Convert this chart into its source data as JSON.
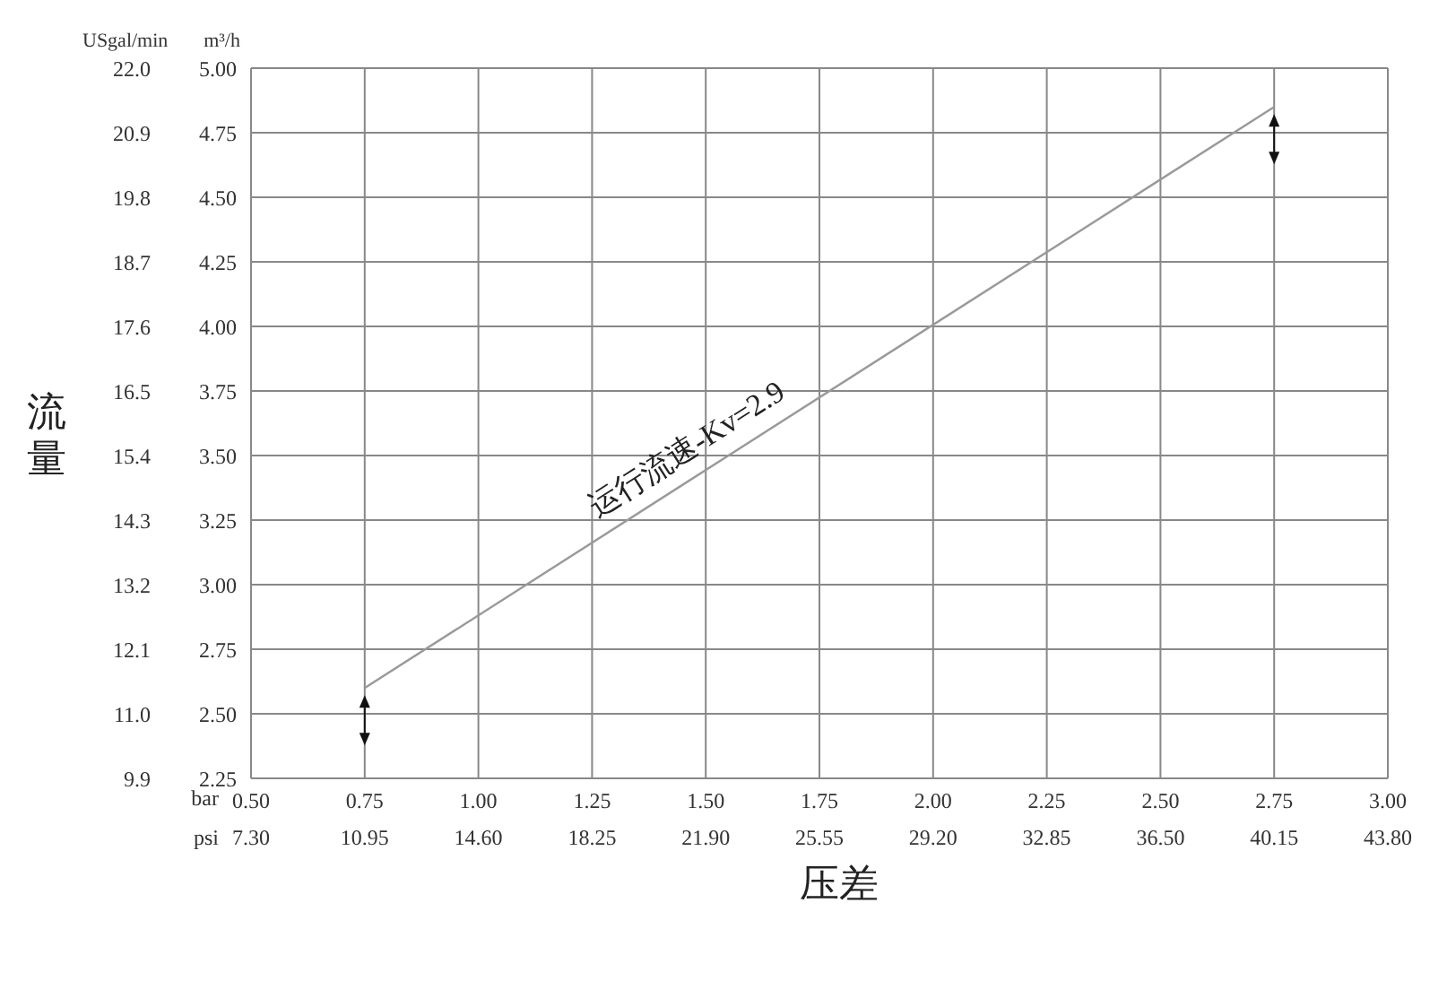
{
  "chart_data": {
    "type": "line",
    "xlabel": "压差",
    "ylabel": "流量",
    "x2label": "psi",
    "y2label": "m³/h",
    "series": [
      {
        "color": "#999999",
        "axis": "y2",
        "x": [
          0.75,
          2.75
        ],
        "values": [
          2.6,
          4.85
        ]
      }
    ],
    "xlim": [
      0.5,
      3.0
    ],
    "xticks": [
      {
        "value": 0.5,
        "label": "0.50"
      },
      {
        "value": 0.75,
        "label": "0.75"
      },
      {
        "value": 1.0,
        "label": "1.00"
      },
      {
        "value": 1.25,
        "label": "1.25"
      },
      {
        "value": 1.5,
        "label": "1.50"
      },
      {
        "value": 1.75,
        "label": "1.75"
      },
      {
        "value": 2.0,
        "label": "2.00"
      },
      {
        "value": 2.25,
        "label": "2.25"
      },
      {
        "value": 2.5,
        "label": "2.50"
      },
      {
        "value": 2.75,
        "label": "2.75"
      },
      {
        "value": 3.0,
        "label": "3.00"
      }
    ],
    "x2lim": [
      7.3,
      43.8
    ],
    "x2ticks": [
      {
        "value": 7.3,
        "label": "7.30"
      },
      {
        "value": 10.95,
        "label": "10.95"
      },
      {
        "value": 14.6,
        "label": "14.60"
      },
      {
        "value": 18.25,
        "label": "18.25"
      },
      {
        "value": 21.9,
        "label": "21.90"
      },
      {
        "value": 25.55,
        "label": "25.55"
      },
      {
        "value": 29.2,
        "label": "29.20"
      },
      {
        "value": 32.85,
        "label": "32.85"
      },
      {
        "value": 36.5,
        "label": "36.50"
      },
      {
        "value": 40.15,
        "label": "40.15"
      },
      {
        "value": 43.8,
        "label": "43.80"
      }
    ],
    "ylim": [
      9.9,
      22.0
    ],
    "yticks": [
      9.9,
      {
        "value": 11.0,
        "label": "11.0"
      },
      12.1,
      13.2,
      14.3,
      15.4,
      16.5,
      17.6,
      18.7,
      19.8,
      20.9,
      {
        "value": 22.0,
        "label": "22.0"
      }
    ],
    "y2lim": [
      2.25,
      5.0
    ],
    "y2ticks": [
      2.25,
      {
        "value": 2.5,
        "label": "2.50"
      },
      2.75,
      {
        "value": 3.0,
        "label": "3.00"
      },
      3.25,
      {
        "value": 3.5,
        "label": "3.50"
      },
      3.75,
      {
        "value": 4.0,
        "label": "4.00"
      },
      4.25,
      {
        "value": 4.5,
        "label": "4.50"
      },
      4.75,
      {
        "value": 5.0,
        "label": "5.00"
      }
    ],
    "grid": true,
    "marker": "none",
    "line_style": "solid",
    "annotations": [
      "运行流速-Kv=2.9",
      "bar",
      "USgal/min"
    ]
  }
}
